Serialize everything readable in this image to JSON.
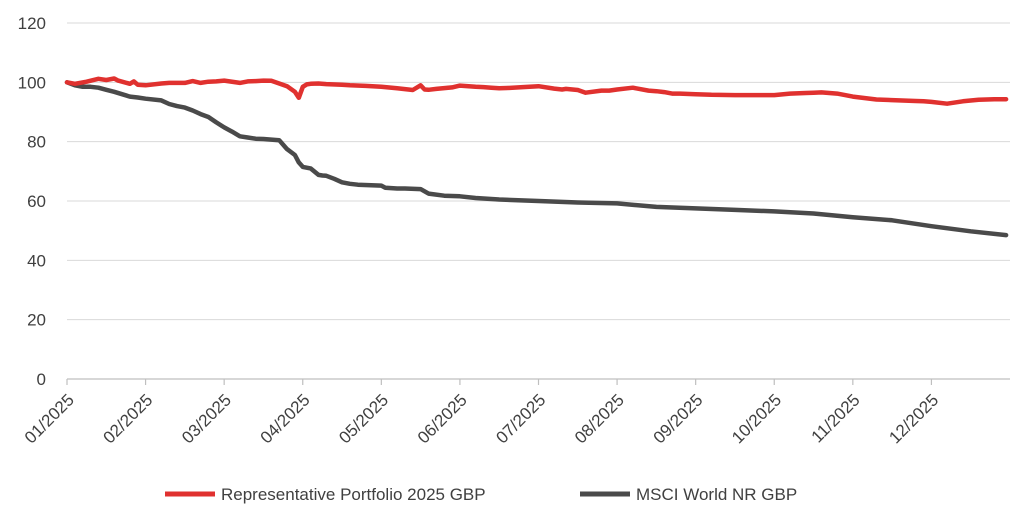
{
  "chart_data": {
    "type": "line",
    "title": "",
    "xlabel": "",
    "ylabel": "",
    "ylim": [
      0,
      120
    ],
    "yticks": [
      0,
      20,
      40,
      60,
      80,
      100,
      120
    ],
    "grid": "horizontal",
    "legend_position": "bottom",
    "x_tick_labels": [
      "01/2025",
      "02/2025",
      "03/2025",
      "04/2025",
      "05/2025",
      "06/2025",
      "07/2025",
      "08/2025",
      "09/2025",
      "10/2025",
      "11/2025",
      "12/2025"
    ],
    "x_range": [
      0,
      12
    ],
    "series": [
      {
        "name": "Representative Portfolio 2025 GBP",
        "color": "#e0312f",
        "x": [
          0,
          0.1,
          0.25,
          0.4,
          0.5,
          0.6,
          0.65,
          0.8,
          0.85,
          0.9,
          1.0,
          1.2,
          1.3,
          1.5,
          1.6,
          1.7,
          1.8,
          1.9,
          2.0,
          2.2,
          2.3,
          2.4,
          2.5,
          2.6,
          2.7,
          2.8,
          2.9,
          2.95,
          3.0,
          3.05,
          3.1,
          3.2,
          3.3,
          3.5,
          3.6,
          3.8,
          4.0,
          4.2,
          4.4,
          4.5,
          4.55,
          4.6,
          4.7,
          4.9,
          5.0,
          5.2,
          5.3,
          5.4,
          5.5,
          5.6,
          5.8,
          6.0,
          6.2,
          6.3,
          6.35,
          6.4,
          6.5,
          6.6,
          6.8,
          6.9,
          7.0,
          7.2,
          7.4,
          7.5,
          7.6,
          7.7,
          7.8,
          8.0,
          8.2,
          8.5,
          9.0,
          9.2,
          9.4,
          9.5,
          9.6,
          9.8,
          9.9,
          10.0,
          10.3,
          10.5,
          10.8,
          10.9,
          11.0,
          11.2,
          11.4,
          11.6,
          11.8,
          11.95
        ],
        "values": [
          100,
          99.5,
          100.2,
          101.2,
          100.8,
          101.3,
          100.6,
          99.5,
          100.3,
          99.2,
          99.0,
          99.6,
          99.8,
          99.8,
          100.4,
          99.8,
          100.2,
          100.3,
          100.6,
          99.8,
          100.3,
          100.4,
          100.6,
          100.5,
          99.6,
          98.7,
          96.8,
          94.8,
          98.5,
          99.3,
          99.5,
          99.6,
          99.4,
          99.2,
          99.0,
          98.8,
          98.5,
          98.0,
          97.4,
          99.0,
          97.6,
          97.5,
          97.8,
          98.3,
          98.9,
          98.5,
          98.4,
          98.2,
          98.0,
          98.1,
          98.4,
          98.7,
          97.9,
          97.6,
          97.8,
          97.7,
          97.4,
          96.5,
          97.2,
          97.2,
          97.6,
          98.2,
          97.2,
          97.0,
          96.7,
          96.2,
          96.2,
          96.0,
          95.8,
          95.7,
          95.7,
          96.2,
          96.4,
          96.5,
          96.6,
          96.2,
          95.7,
          95.2,
          94.2,
          94.0,
          93.7,
          93.6,
          93.4,
          92.8,
          93.6,
          94.1,
          94.3,
          94.3
        ]
      },
      {
        "name": "MSCI World NR GBP",
        "color": "#4a4a4a",
        "x": [
          0,
          0.1,
          0.2,
          0.3,
          0.4,
          0.5,
          0.6,
          0.7,
          0.8,
          0.9,
          1.0,
          1.2,
          1.3,
          1.4,
          1.5,
          1.6,
          1.7,
          1.8,
          1.9,
          2.0,
          2.1,
          2.2,
          2.3,
          2.4,
          2.5,
          2.6,
          2.7,
          2.8,
          2.9,
          2.95,
          3.0,
          3.1,
          3.2,
          3.25,
          3.3,
          3.4,
          3.5,
          3.6,
          3.7,
          4.0,
          4.05,
          4.2,
          4.3,
          4.5,
          4.6,
          4.8,
          5.0,
          5.2,
          5.5,
          6.0,
          6.5,
          7.0,
          7.5,
          8.0,
          8.5,
          9.0,
          9.5,
          10.0,
          10.5,
          11.0,
          11.5,
          11.95
        ],
        "values": [
          100,
          99,
          98.5,
          98.5,
          98.2,
          97.5,
          96.8,
          96.0,
          95.2,
          94.9,
          94.5,
          93.9,
          92.7,
          92.0,
          91.5,
          90.5,
          89.3,
          88.3,
          86.5,
          84.8,
          83.4,
          81.8,
          81.4,
          81.0,
          80.9,
          80.7,
          80.5,
          77.5,
          75.5,
          73.0,
          71.5,
          71.0,
          68.8,
          68.6,
          68.5,
          67.5,
          66.3,
          65.8,
          65.5,
          65.2,
          64.5,
          64.2,
          64.2,
          64.0,
          62.5,
          61.8,
          61.6,
          61.0,
          60.5,
          60.0,
          59.5,
          59.2,
          58.0,
          57.5,
          57.0,
          56.5,
          55.8,
          54.5,
          53.5,
          51.5,
          49.8,
          48.5
        ]
      }
    ]
  }
}
